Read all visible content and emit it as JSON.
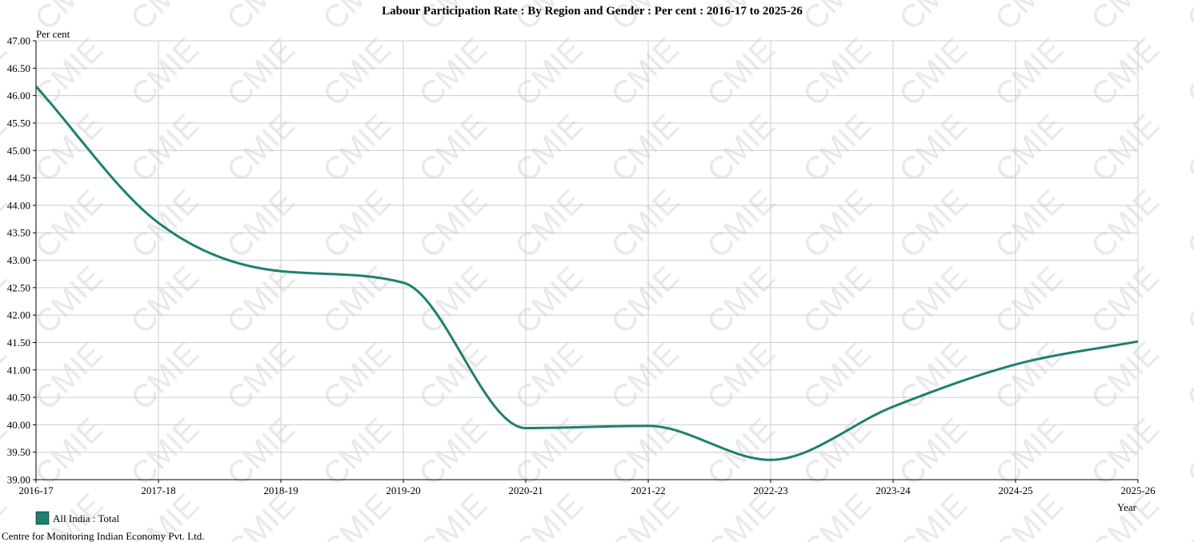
{
  "chart_data": {
    "type": "line",
    "title": "Labour Participation Rate : By Region and Gender : Per cent : 2016-17 to 2025-26",
    "ylabel": "Per cent",
    "xlabel": "Year",
    "x": [
      "2016-17",
      "2017-18",
      "2018-19",
      "2019-20",
      "2020-21",
      "2021-22",
      "2022-23",
      "2023-24",
      "2024-25",
      "2025-26"
    ],
    "series": [
      {
        "name": "All India : Total",
        "color": "#1e8070",
        "values": [
          46.17,
          43.68,
          42.8,
          42.59,
          39.94,
          39.98,
          39.36,
          40.33,
          41.1,
          41.52
        ]
      }
    ],
    "ylim": [
      39.0,
      47.0
    ],
    "yticks": [
      "39.00",
      "39.50",
      "40.00",
      "40.50",
      "41.00",
      "41.50",
      "42.00",
      "42.50",
      "43.00",
      "43.50",
      "44.00",
      "44.50",
      "45.00",
      "45.50",
      "46.00",
      "46.50",
      "47.00"
    ],
    "grid": true,
    "legend_position": "bottom-left"
  },
  "watermark": "CMIE",
  "footer": "Centre for Monitoring Indian Economy Pvt. Ltd."
}
